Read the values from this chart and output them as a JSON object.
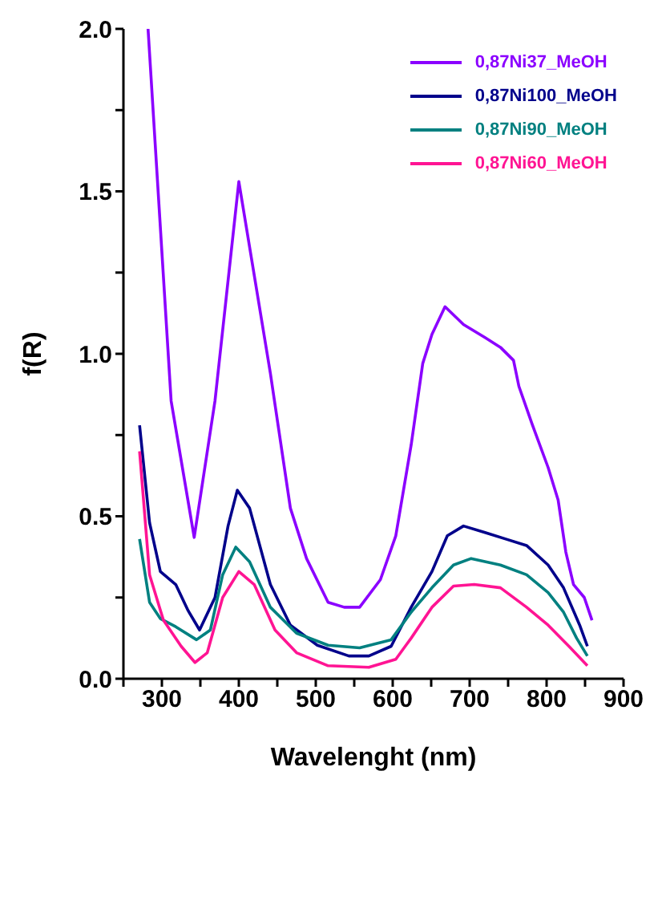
{
  "chart_data": {
    "type": "line",
    "xlabel": "Wavelenght (nm)",
    "ylabel": "f(R)",
    "xlim": [
      250,
      900
    ],
    "ylim": [
      0,
      2.0
    ],
    "xticks": [
      {
        "value": 250,
        "label": null
      },
      300,
      {
        "value": 350,
        "label": null
      },
      400,
      {
        "value": 450,
        "label": null
      },
      500,
      {
        "value": 550,
        "label": null
      },
      600,
      {
        "value": 650,
        "label": null
      },
      700,
      {
        "value": 750,
        "label": null
      },
      800,
      {
        "value": 850,
        "label": null
      },
      900
    ],
    "yticks": [
      {
        "value": 0,
        "label": "0.0"
      },
      {
        "value": 0.25,
        "label": null
      },
      {
        "value": 0.5,
        "label": "0.5"
      },
      {
        "value": 0.75,
        "label": null
      },
      {
        "value": 1,
        "label": "1.0"
      },
      {
        "value": 1.25,
        "label": null
      },
      {
        "value": 1.5,
        "label": "1.5"
      },
      {
        "value": 1.75,
        "label": null
      },
      {
        "value": 2,
        "label": "2.0"
      }
    ],
    "grid": false,
    "legend": "top right",
    "marker": "none",
    "line_style": "solid",
    "series": [
      {
        "name": "0,87Ni37_MeOH",
        "color": "#8b00ff",
        "x": [
          282,
          312,
          342,
          369,
          400,
          441,
          467,
          488,
          516,
          537,
          557,
          584,
          604,
          624,
          639,
          651,
          668,
          692,
          720,
          740,
          757,
          764,
          781,
          802,
          815,
          825,
          835,
          849,
          859
        ],
        "values": [
          2.0,
          0.855,
          0.435,
          0.855,
          1.53,
          0.94,
          0.525,
          0.37,
          0.235,
          0.22,
          0.22,
          0.305,
          0.44,
          0.72,
          0.97,
          1.06,
          1.145,
          1.09,
          1.05,
          1.02,
          0.98,
          0.9,
          0.785,
          0.65,
          0.55,
          0.39,
          0.29,
          0.25,
          0.18
        ]
      },
      {
        "name": "0,87Ni100_MeOH",
        "color": "#00008b",
        "x": [
          271,
          284,
          298,
          318,
          334,
          349,
          369,
          386,
          398,
          414,
          441,
          467,
          502,
          543,
          569,
          598,
          624,
          651,
          671,
          692,
          720,
          747,
          774,
          802,
          822,
          843,
          853
        ],
        "values": [
          0.78,
          0.48,
          0.33,
          0.29,
          0.21,
          0.15,
          0.25,
          0.47,
          0.58,
          0.525,
          0.29,
          0.165,
          0.103,
          0.07,
          0.07,
          0.1,
          0.22,
          0.33,
          0.44,
          0.47,
          0.45,
          0.43,
          0.41,
          0.35,
          0.28,
          0.165,
          0.1
        ]
      },
      {
        "name": "0,87Ni90_MeOH",
        "color": "#008080",
        "x": [
          271,
          284,
          298,
          318,
          345,
          363,
          379,
          396,
          414,
          441,
          475,
          516,
          557,
          598,
          624,
          651,
          679,
          702,
          740,
          774,
          802,
          822,
          839,
          853
        ],
        "values": [
          0.43,
          0.235,
          0.185,
          0.16,
          0.12,
          0.15,
          0.32,
          0.405,
          0.36,
          0.22,
          0.14,
          0.103,
          0.095,
          0.12,
          0.205,
          0.28,
          0.35,
          0.37,
          0.35,
          0.32,
          0.265,
          0.205,
          0.125,
          0.07
        ]
      },
      {
        "name": "0,87Ni60_MeOH",
        "color": "#ff1493",
        "x": [
          271,
          284,
          302,
          325,
          343,
          359,
          379,
          400,
          420,
          447,
          475,
          516,
          569,
          604,
          624,
          651,
          679,
          706,
          740,
          774,
          802,
          829,
          853
        ],
        "values": [
          0.7,
          0.32,
          0.18,
          0.1,
          0.05,
          0.08,
          0.25,
          0.33,
          0.29,
          0.15,
          0.08,
          0.04,
          0.035,
          0.06,
          0.125,
          0.22,
          0.285,
          0.29,
          0.28,
          0.22,
          0.165,
          0.1,
          0.04
        ]
      }
    ]
  }
}
